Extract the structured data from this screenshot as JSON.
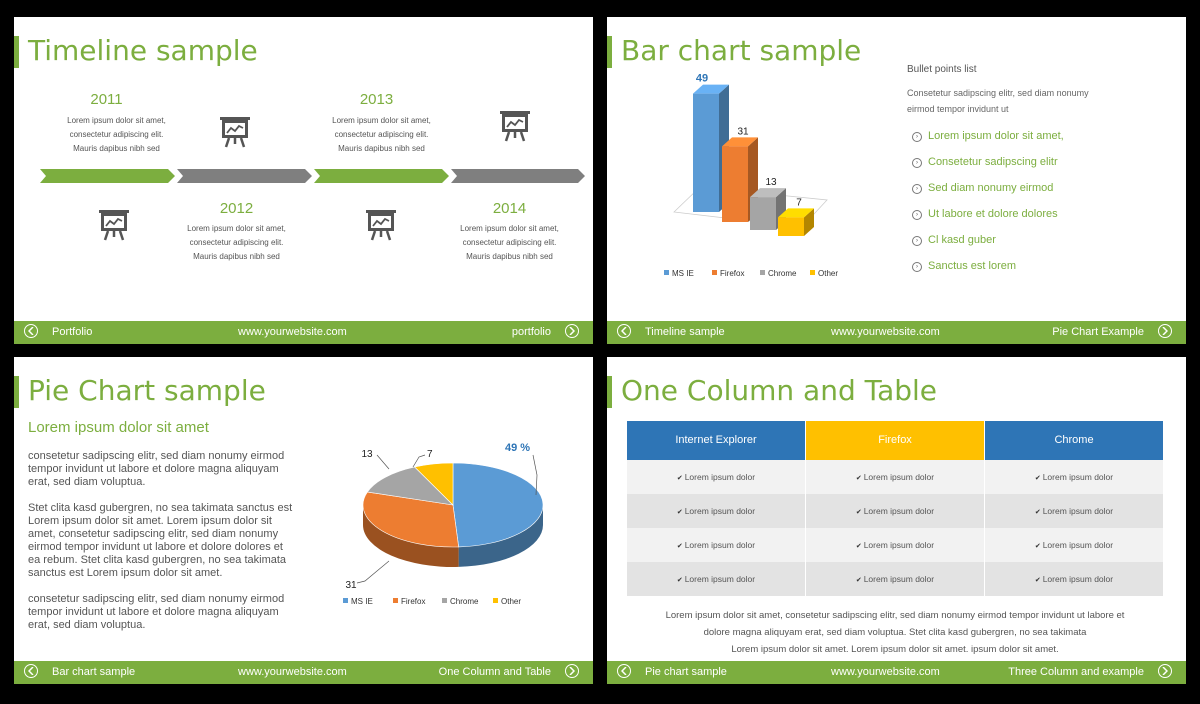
{
  "slides": {
    "timeline": {
      "title": "Timeline sample",
      "events": [
        {
          "year": "2011",
          "text": [
            "Lorem ipsum dolor sit amet,",
            "consectetur adipiscing elit.",
            "Mauris dapibus nibh sed"
          ]
        },
        {
          "year": "2012",
          "text": [
            "Lorem ipsum dolor sit amet,",
            "consectetur adipiscing elit.",
            "Mauris dapibus nibh sed"
          ]
        },
        {
          "year": "2013",
          "text": [
            "Lorem ipsum dolor sit amet,",
            "consectetur adipiscing elit.",
            "Mauris dapibus nibh sed"
          ]
        },
        {
          "year": "2014",
          "text": [
            "Lorem ipsum dolor sit amet,",
            "consectetur adipiscing elit.",
            "Mauris dapibus nibh sed"
          ]
        }
      ],
      "icon": "presentation-chart-icon",
      "footer": {
        "left": "Portfolio",
        "center": "www.yourwebsite.com",
        "right": "portfolio"
      }
    },
    "bar": {
      "title": "Bar chart sample",
      "bullet_heading": "Bullet points list",
      "bullet_intro": [
        "Consetetur sadipscing elitr, sed diam nonumy",
        "eirmod tempor invidunt ut"
      ],
      "bullets": [
        "Lorem ipsum dolor sit amet,",
        "Consetetur sadipscing elitr",
        "Sed diam nonumy eirmod",
        "Ut labore et dolore dolores",
        "Cl kasd guber",
        "Sanctus est lorem"
      ],
      "footer": {
        "left": "Timeline sample",
        "center": "www.yourwebsite.com",
        "right": "Pie Chart Example"
      }
    },
    "pie": {
      "title": "Pie Chart sample",
      "subtitle": "Lorem ipsum dolor sit amet",
      "paragraphs": [
        [
          "consetetur sadipscing elitr, sed diam nonumy eirmod",
          "tempor invidunt ut labore et dolore magna aliquyam",
          "erat, sed diam voluptua."
        ],
        [
          "Stet clita kasd gubergren, no sea takimata sanctus est",
          "Lorem ipsum dolor sit amet. Lorem ipsum dolor sit",
          "amet, consetetur sadipscing elitr, sed diam nonumy",
          "eirmod tempor invidunt ut labore et dolore dolores et",
          "ea rebum. Stet clita kasd gubergren, no sea takimata",
          "sanctus est Lorem ipsum dolor sit amet."
        ],
        [
          "consetetur sadipscing elitr, sed diam nonumy eirmod",
          "tempor invidunt ut labore et dolore magna aliquyam",
          "erat, sed diam voluptua."
        ]
      ],
      "footer": {
        "left": "Bar chart sample",
        "center": "www.yourwebsite.com",
        "right": "One Column and Table"
      }
    },
    "table": {
      "title": "One Column and Table",
      "columns": [
        "Internet Explorer",
        "Firefox",
        "Chrome"
      ],
      "column_colors": [
        "#2e75b6",
        "#ffc000",
        "#2e75b6"
      ],
      "cell_text": "Lorem ipsum dolor",
      "row_count": 4,
      "paragraph": [
        "Lorem ipsum dolor sit amet, consetetur sadipscing elitr, sed diam nonumy eirmod  tempor  invidunt ut labore et",
        "dolore magna aliquyam erat, sed diam voluptua. Stet clita kasd gubergren, no sea takimata",
        "Lorem ipsum dolor sit amet. Lorem ipsum dolor sit amet. ipsum dolor sit amet."
      ],
      "footer": {
        "left": "Pie chart sample",
        "center": "www.yourwebsite.com",
        "right": "Three Column and example"
      }
    }
  },
  "chart_data": [
    {
      "type": "bar",
      "categories": [
        "MS IE",
        "Firefox",
        "Chrome",
        "Other"
      ],
      "values": [
        49,
        31,
        13,
        7
      ],
      "colors": [
        "#5b9bd5",
        "#ed7d31",
        "#a5a5a5",
        "#ffc000"
      ],
      "legend": "bottom"
    },
    {
      "type": "pie",
      "categories": [
        "MS IE",
        "Firefox",
        "Chrome",
        "Other"
      ],
      "values": [
        49,
        31,
        13,
        7
      ],
      "labels": [
        "49 %",
        "31",
        "13",
        "7"
      ],
      "colors": [
        "#5b9bd5",
        "#ed7d31",
        "#a5a5a5",
        "#ffc000"
      ],
      "legend": "bottom"
    }
  ]
}
